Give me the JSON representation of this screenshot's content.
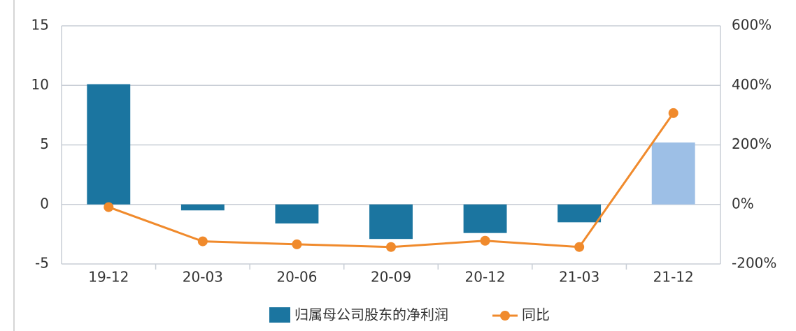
{
  "chart_data": {
    "type": "bar_line",
    "categories": [
      "19-12",
      "20-03",
      "20-06",
      "20-09",
      "20-12",
      "21-03",
      "21-12"
    ],
    "series": [
      {
        "name": "归属母公司股东的净利润",
        "type": "bar",
        "color": "#1b75a0",
        "colors": [
          "#1b75a0",
          "#1b75a0",
          "#1b75a0",
          "#1b75a0",
          "#1b75a0",
          "#1b75a0",
          "#9dbfe6"
        ],
        "values": [
          10.1,
          -0.5,
          -1.6,
          -2.9,
          -2.4,
          -1.5,
          5.2
        ]
      },
      {
        "name": "同比",
        "type": "line",
        "axis": "y2",
        "color": "#f08a2c",
        "values": [
          -9,
          -124,
          -134,
          -143,
          -122,
          -143,
          307
        ]
      }
    ],
    "ylim": [
      -5,
      15
    ],
    "yticks": [
      -5,
      0,
      5,
      10,
      15
    ],
    "y2lim": [
      -200,
      600
    ],
    "y2ticks": [
      {
        "value": -200,
        "label": "-200%"
      },
      {
        "value": 0,
        "label": "0%"
      },
      {
        "value": 200,
        "label": "200%"
      },
      {
        "value": 400,
        "label": "400%"
      },
      {
        "value": 600,
        "label": "600%"
      }
    ],
    "grid": true,
    "legend": "bottom"
  }
}
